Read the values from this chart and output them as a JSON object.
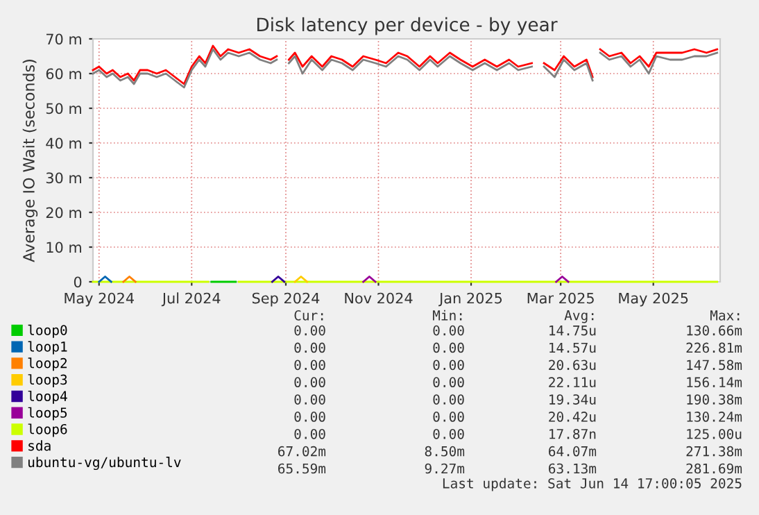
{
  "chart_data": {
    "type": "line",
    "title": "Disk latency per device - by year",
    "ylabel": "Average IO Wait (seconds)",
    "xlim": [
      "2024-04-27",
      "2025-06-14"
    ],
    "xticks": [
      {
        "value": "2024-05-01",
        "label": "May 2024"
      },
      {
        "value": "2024-07-01",
        "label": "Jul 2024"
      },
      {
        "value": "2024-09-01",
        "label": "Sep 2024"
      },
      {
        "value": "2024-11-01",
        "label": "Nov 2024"
      },
      {
        "value": "2025-01-01",
        "label": "Jan 2025"
      },
      {
        "value": "2025-03-01",
        "label": "Mar 2025"
      },
      {
        "value": "2025-05-01",
        "label": "May 2025"
      }
    ],
    "ylim": [
      0,
      70
    ],
    "yticks": [
      0,
      {
        "value": 10,
        "label": "10 m"
      },
      {
        "value": 20,
        "label": "20 m"
      },
      {
        "value": 30,
        "label": "30 m"
      },
      {
        "value": 40,
        "label": "40 m"
      },
      {
        "value": 50,
        "label": "50 m"
      },
      {
        "value": 60,
        "label": "60 m"
      },
      {
        "value": 70,
        "label": "70 m"
      }
    ],
    "grid": true,
    "legend": "bottom",
    "series": [
      {
        "name": "loop0",
        "color": "#00cc00",
        "x": [
          "2024-07-14",
          "2024-07-30"
        ],
        "values": [
          0,
          0
        ]
      },
      {
        "name": "loop1",
        "color": "#0066b3",
        "x": [
          "2024-05-01",
          "2024-05-05",
          "2024-05-09"
        ],
        "values": [
          0,
          1.5,
          0
        ]
      },
      {
        "name": "loop2",
        "color": "#ff8000",
        "x": [
          "2024-05-17",
          "2024-05-21",
          "2024-05-25"
        ],
        "values": [
          0,
          1.5,
          0
        ]
      },
      {
        "name": "loop3",
        "color": "#ffcc00",
        "x": [
          "2024-09-07",
          "2024-09-11",
          "2024-09-15"
        ],
        "values": [
          0,
          1.5,
          0
        ]
      },
      {
        "name": "loop4",
        "color": "#330099",
        "x": [
          "2024-08-23",
          "2024-08-27",
          "2024-08-31"
        ],
        "values": [
          0,
          1.5,
          0
        ]
      },
      {
        "name": "loop5",
        "color": "#990099",
        "x": [
          "2024-10-22",
          "2024-10-26",
          "2024-10-30",
          "2024-12-15",
          "2025-02-26",
          "2025-03-02",
          "2025-03-06"
        ],
        "values": [
          0,
          1.5,
          0,
          null,
          0,
          1.5,
          0
        ]
      },
      {
        "name": "loop6",
        "color": "#ccff00",
        "x": [
          "2024-04-27",
          "2024-07-12",
          "2024-07-20",
          "2024-08-01",
          "2025-06-12"
        ],
        "values": [
          0,
          0,
          null,
          0,
          0
        ]
      },
      {
        "name": "sda",
        "color": "#ff0000",
        "x": [
          "2024-04-27",
          "2024-05-01",
          "2024-05-06",
          "2024-05-10",
          "2024-05-15",
          "2024-05-20",
          "2024-05-24",
          "2024-05-28",
          "2024-06-02",
          "2024-06-08",
          "2024-06-14",
          "2024-06-20",
          "2024-06-26",
          "2024-07-01",
          "2024-07-06",
          "2024-07-10",
          "2024-07-15",
          "2024-07-20",
          "2024-07-25",
          "2024-08-01",
          "2024-08-08",
          "2024-08-15",
          "2024-08-22",
          "2024-08-26",
          "2024-08-30",
          "2024-09-03",
          "2024-09-07",
          "2024-09-12",
          "2024-09-18",
          "2024-09-25",
          "2024-10-01",
          "2024-10-08",
          "2024-10-15",
          "2024-10-22",
          "2024-10-30",
          "2024-11-06",
          "2024-11-14",
          "2024-11-20",
          "2024-11-28",
          "2024-12-05",
          "2024-12-10",
          "2024-12-18",
          "2024-12-25",
          "2025-01-02",
          "2025-01-10",
          "2025-01-18",
          "2025-01-26",
          "2025-02-01",
          "2025-02-10",
          "2025-02-15",
          "2025-02-18",
          "2025-02-25",
          "2025-03-03",
          "2025-03-10",
          "2025-03-18",
          "2025-03-22",
          "2025-03-25",
          "2025-03-27",
          "2025-04-02",
          "2025-04-10",
          "2025-04-16",
          "2025-04-22",
          "2025-04-28",
          "2025-05-03",
          "2025-05-12",
          "2025-05-20",
          "2025-05-28",
          "2025-06-05",
          "2025-06-12"
        ],
        "values": [
          61,
          62,
          60,
          61,
          59,
          60,
          58,
          61,
          61,
          60,
          61,
          59,
          57,
          62,
          65,
          63,
          68,
          65,
          67,
          66,
          67,
          65,
          64,
          65,
          null,
          64,
          66,
          62,
          65,
          62,
          65,
          64,
          62,
          65,
          64,
          63,
          66,
          65,
          62,
          65,
          63,
          66,
          64,
          62,
          64,
          62,
          64,
          62,
          63,
          null,
          63,
          61,
          65,
          62,
          64,
          59,
          null,
          67,
          65,
          66,
          63,
          65,
          62,
          66,
          66,
          66,
          67,
          66,
          67
        ]
      },
      {
        "name": "ubuntu-vg/ubuntu-lv",
        "color": "#808080",
        "x": [
          "2024-04-27",
          "2024-05-01",
          "2024-05-06",
          "2024-05-10",
          "2024-05-15",
          "2024-05-20",
          "2024-05-24",
          "2024-05-28",
          "2024-06-02",
          "2024-06-08",
          "2024-06-14",
          "2024-06-20",
          "2024-06-26",
          "2024-07-01",
          "2024-07-06",
          "2024-07-10",
          "2024-07-15",
          "2024-07-20",
          "2024-07-25",
          "2024-08-01",
          "2024-08-08",
          "2024-08-15",
          "2024-08-22",
          "2024-08-26",
          "2024-08-30",
          "2024-09-03",
          "2024-09-07",
          "2024-09-12",
          "2024-09-18",
          "2024-09-25",
          "2024-10-01",
          "2024-10-08",
          "2024-10-15",
          "2024-10-22",
          "2024-10-30",
          "2024-11-06",
          "2024-11-14",
          "2024-11-20",
          "2024-11-28",
          "2024-12-05",
          "2024-12-10",
          "2024-12-18",
          "2024-12-25",
          "2025-01-02",
          "2025-01-10",
          "2025-01-18",
          "2025-01-26",
          "2025-02-01",
          "2025-02-10",
          "2025-02-15",
          "2025-02-18",
          "2025-02-25",
          "2025-03-03",
          "2025-03-10",
          "2025-03-18",
          "2025-03-22",
          "2025-03-25",
          "2025-03-27",
          "2025-04-02",
          "2025-04-10",
          "2025-04-16",
          "2025-04-22",
          "2025-04-28",
          "2025-05-03",
          "2025-05-12",
          "2025-05-20",
          "2025-05-28",
          "2025-06-05",
          "2025-06-12"
        ],
        "values": [
          60,
          61,
          59,
          60,
          58,
          59,
          57,
          60,
          60,
          59,
          60,
          58,
          56,
          61,
          64,
          62,
          67,
          64,
          66,
          65,
          66,
          64,
          63,
          64,
          null,
          63,
          65,
          60,
          64,
          61,
          64,
          63,
          61,
          64,
          63,
          62,
          65,
          64,
          61,
          64,
          62,
          65,
          63,
          61,
          63,
          61,
          63,
          61,
          62,
          null,
          62,
          59,
          64,
          61,
          63,
          58,
          null,
          66,
          64,
          65,
          62,
          64,
          60,
          65,
          64,
          64,
          65,
          65,
          66
        ]
      }
    ],
    "annotations": [
      "Cur:",
      "Min:",
      "Avg:",
      "Max:",
      "0.00",
      "0.00",
      "14.75u",
      "130.66m",
      "0.00",
      "0.00",
      "14.57u",
      "226.81m",
      "0.00",
      "0.00",
      "20.63u",
      "147.58m",
      "0.00",
      "0.00",
      "22.11u",
      "156.14m",
      "0.00",
      "0.00",
      "19.34u",
      "190.38m",
      "0.00",
      "0.00",
      "20.42u",
      "130.24m",
      "0.00",
      "0.00",
      "17.87n",
      "125.00u",
      "67.02m",
      "8.50m",
      "64.07m",
      "271.38m",
      "65.59m",
      "9.27m",
      "63.13m",
      "281.69m",
      "Last update: Sat Jun 14 17:00:05 2025"
    ]
  }
}
